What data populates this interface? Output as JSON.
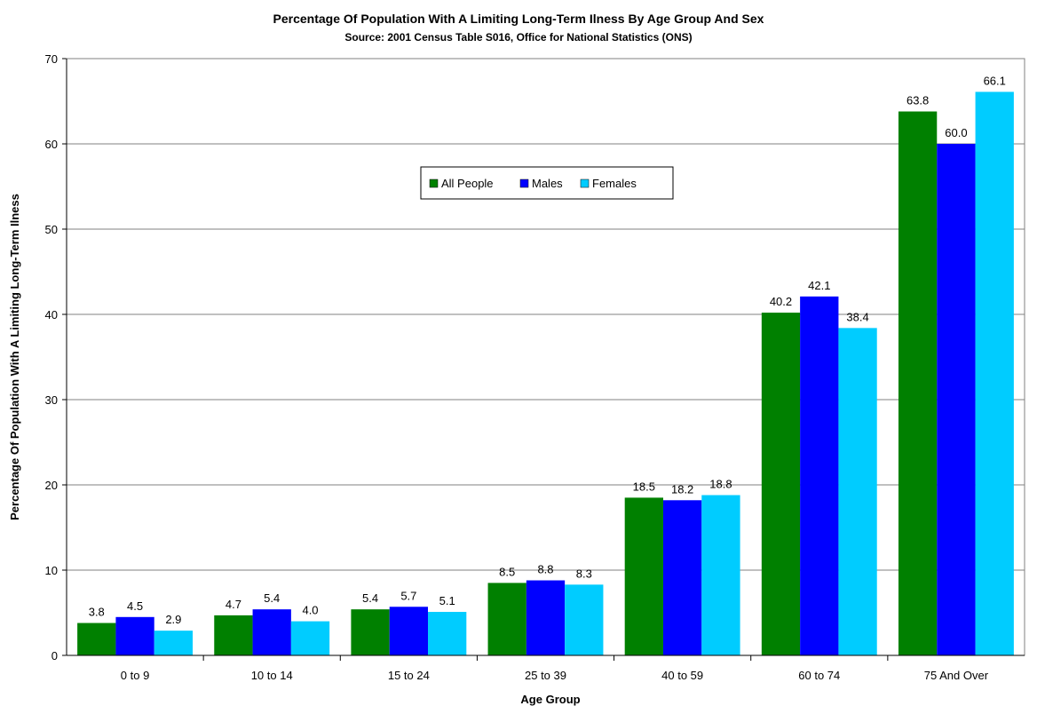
{
  "chart_data": {
    "type": "bar",
    "title": "Percentage Of Population With A Limiting Long-Term Ilness  By Age Group And Sex",
    "subtitle": "Source: 2001 Census Table S016, Office for National Statistics (ONS)",
    "xlabel": "Age Group",
    "ylabel": "Percentage Of Population With A Limiting Long-Term Ilness",
    "ylim": [
      0,
      70
    ],
    "yticks": [
      0,
      10,
      20,
      30,
      40,
      50,
      60,
      70
    ],
    "grid": true,
    "legend_position": "top-center",
    "categories": [
      "0 to 9",
      "10 to 14",
      "15 to 24",
      "25 to 39",
      "40 to 59",
      "60 to 74",
      "75 And Over"
    ],
    "series": [
      {
        "name": "All People",
        "color": "#008000",
        "values": [
          3.8,
          4.7,
          5.4,
          8.5,
          18.5,
          40.2,
          63.8
        ]
      },
      {
        "name": "Males",
        "color": "#0000FF",
        "values": [
          4.5,
          5.4,
          5.7,
          8.8,
          18.2,
          42.1,
          60.0
        ]
      },
      {
        "name": "Females",
        "color": "#00CCFF",
        "values": [
          2.9,
          4.0,
          5.1,
          8.3,
          18.8,
          38.4,
          66.1
        ]
      }
    ]
  }
}
